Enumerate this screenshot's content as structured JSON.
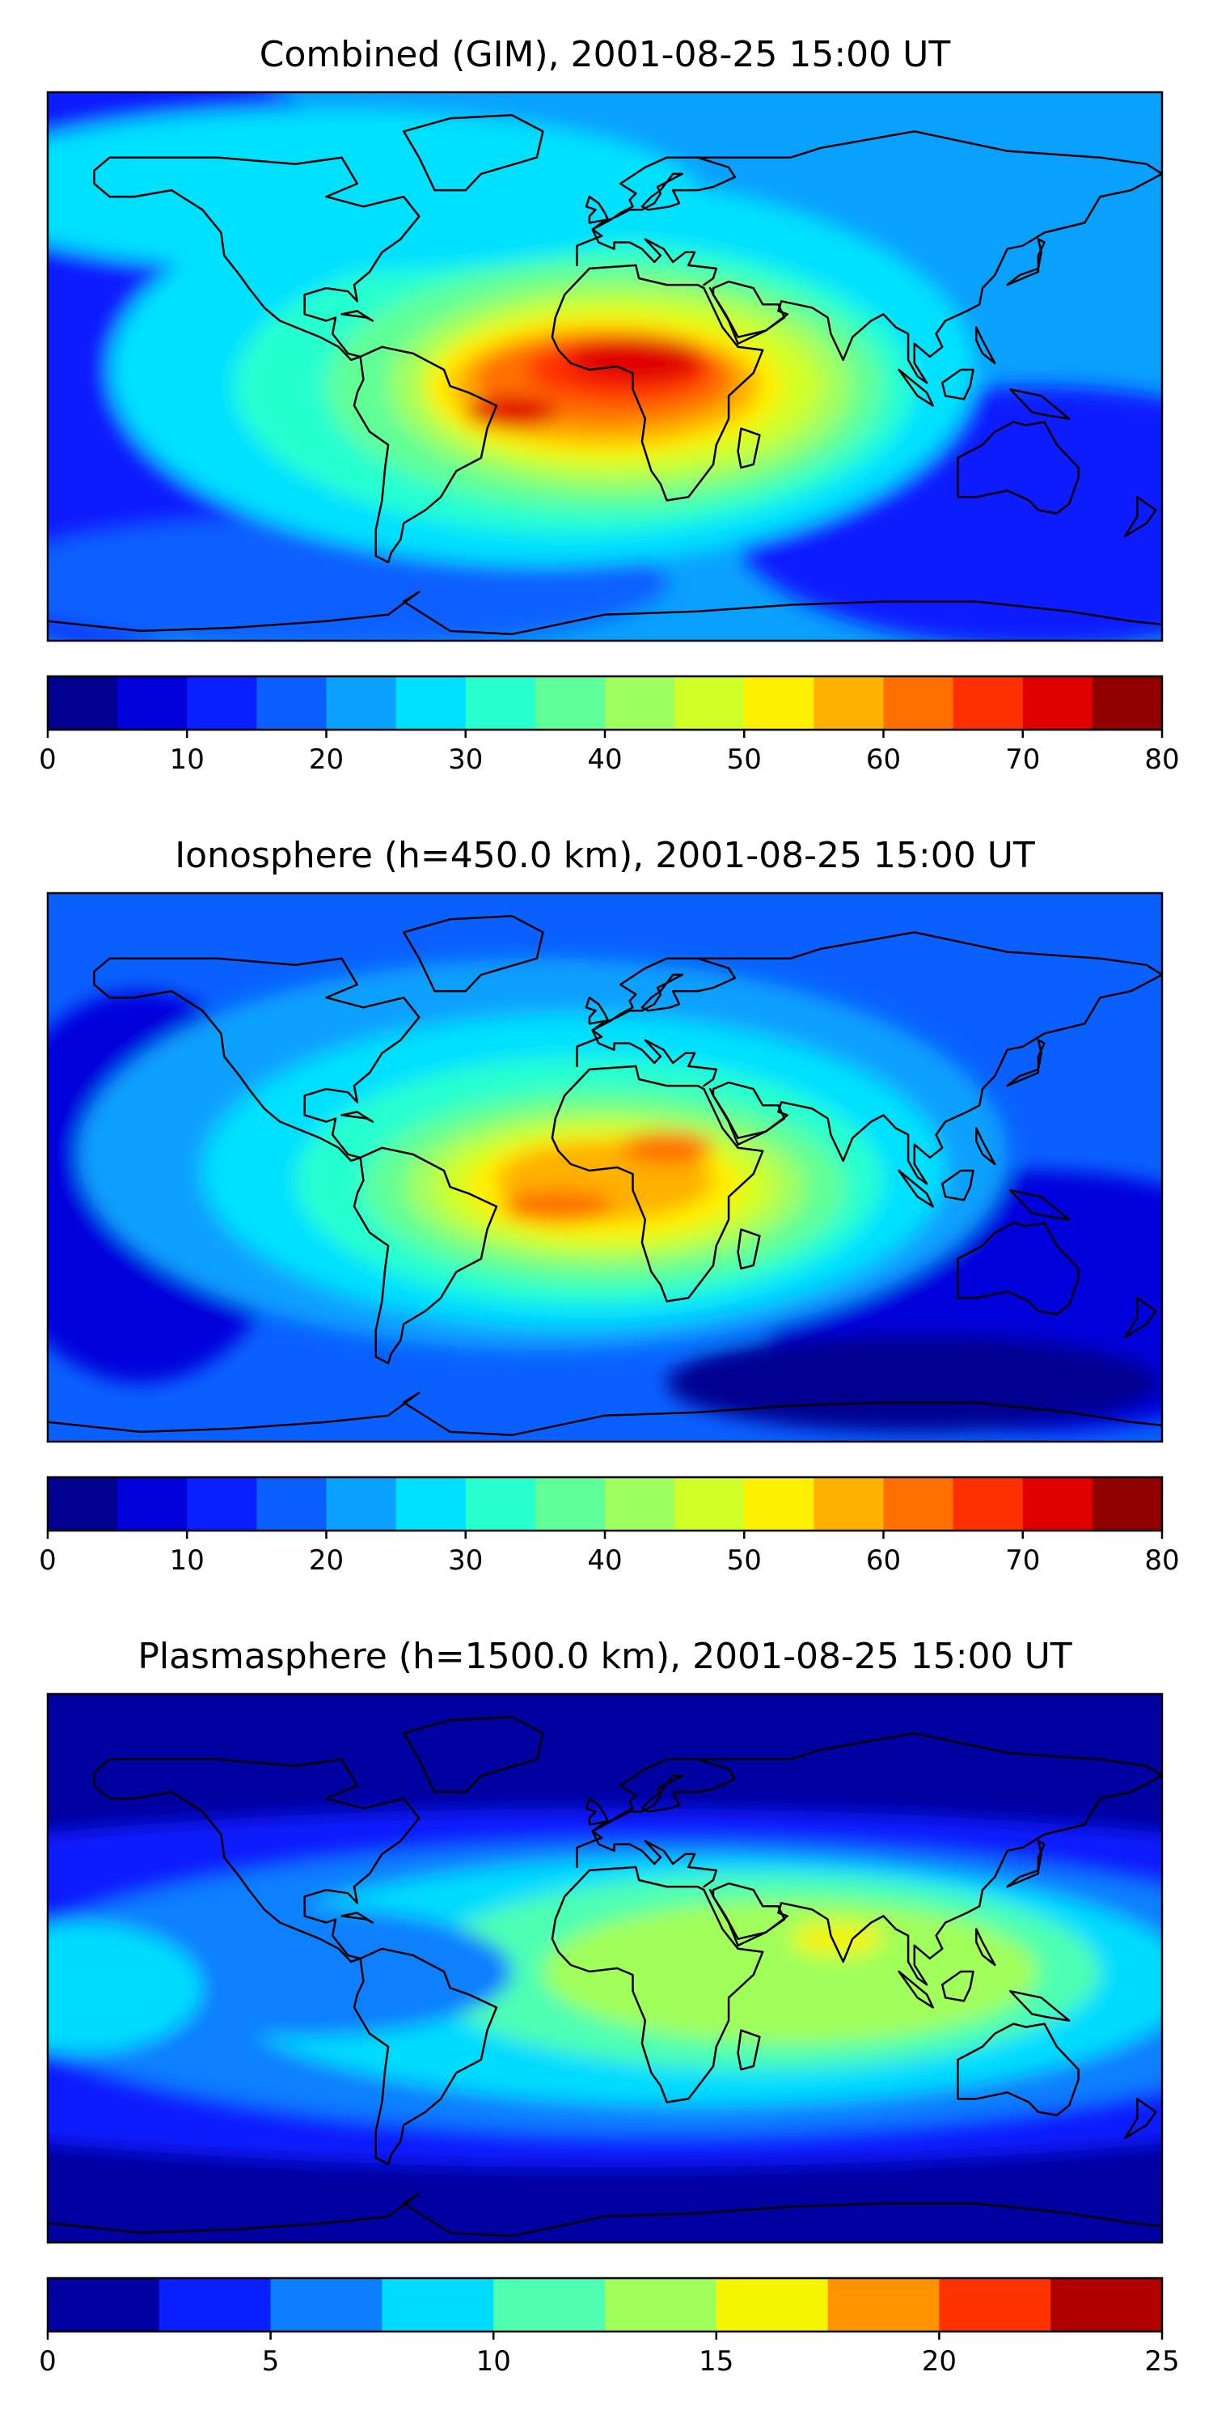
{
  "panels": [
    {
      "title": "Combined (GIM), 2001-08-25 15:00 UT",
      "colorbar": {
        "min": 0,
        "max": 80,
        "step": 5,
        "tick_labels": [
          "0",
          "10",
          "20",
          "30",
          "40",
          "50",
          "60",
          "70",
          "80"
        ],
        "tick_values": [
          0,
          10,
          20,
          30,
          40,
          50,
          60,
          70,
          80
        ]
      },
      "background_level": 20,
      "features": [
        {
          "desc": "equatorial anomaly core over Africa/South America",
          "lon": -10,
          "lat": -5,
          "level": 72
        },
        {
          "desc": "northern crest over North Africa",
          "lon": 25,
          "lat": 10,
          "level": 62
        },
        {
          "desc": "South America crest",
          "lon": -40,
          "lat": -10,
          "level": 55
        }
      ]
    },
    {
      "title": "Ionosphere  (h=450.0 km), 2001-08-25 15:00 UT",
      "colorbar": {
        "min": 0,
        "max": 80,
        "step": 5,
        "tick_labels": [
          "0",
          "10",
          "20",
          "30",
          "40",
          "50",
          "60",
          "70",
          "80"
        ],
        "tick_values": [
          0,
          10,
          20,
          30,
          40,
          50,
          60,
          70,
          80
        ]
      },
      "background_level": 15,
      "features": [
        {
          "desc": "anomaly core Atlantic",
          "lon": -20,
          "lat": -8,
          "level": 60
        },
        {
          "desc": "North Africa crest",
          "lon": 20,
          "lat": 10,
          "level": 58
        }
      ]
    },
    {
      "title": "Plasmasphere (h=1500.0 km), 2001-08-25 15:00 UT",
      "colorbar": {
        "min": 0,
        "max": 25,
        "step": 2.5,
        "tick_labels": [
          "0",
          "5",
          "10",
          "15",
          "20",
          "25"
        ],
        "tick_values": [
          0,
          5,
          10,
          15,
          20,
          25
        ]
      },
      "background_level": 2,
      "features": [
        {
          "desc": "Indian Ocean / South Asia maximum",
          "lon": 75,
          "lat": 15,
          "level": 15.5
        },
        {
          "desc": "East Africa maximum",
          "lon": 40,
          "lat": 10,
          "level": 14
        }
      ]
    }
  ],
  "colors": {
    "jet16": [
      "#00008f",
      "#0000db",
      "#0a1fff",
      "#0a60ff",
      "#0aa0ff",
      "#00e0ff",
      "#28ffd0",
      "#60ff98",
      "#a0ff60",
      "#d0ff28",
      "#fff000",
      "#ffb000",
      "#ff7000",
      "#ff3000",
      "#e00000",
      "#900000"
    ],
    "jet10": [
      "#0000a0",
      "#0a1fff",
      "#0a7fff",
      "#00dcff",
      "#4effb2",
      "#a0ff5a",
      "#f5f500",
      "#ff9400",
      "#ff3300",
      "#b00000"
    ],
    "coastline": "#000000"
  }
}
